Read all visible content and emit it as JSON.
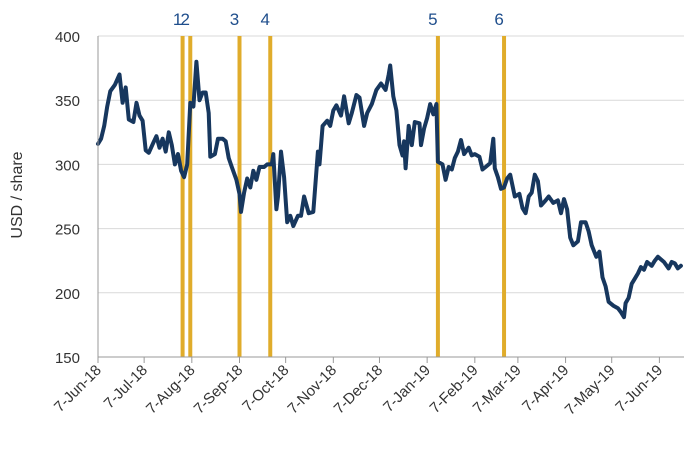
{
  "chart_data": {
    "type": "line",
    "title": "",
    "xlabel": "",
    "ylabel": "USD / share",
    "ylim": [
      150,
      400
    ],
    "y_ticks": [
      150,
      200,
      250,
      300,
      350,
      400
    ],
    "xlim": [
      "2018-06-07",
      "2019-06-23"
    ],
    "x_ticks": [
      {
        "date": "2018-06-07",
        "label": "7-Jun-18"
      },
      {
        "date": "2018-07-07",
        "label": "7-Jul-18"
      },
      {
        "date": "2018-08-07",
        "label": "7-Aug-18"
      },
      {
        "date": "2018-09-07",
        "label": "7-Sep-18"
      },
      {
        "date": "2018-10-07",
        "label": "7-Oct-18"
      },
      {
        "date": "2018-11-07",
        "label": "7-Nov-18"
      },
      {
        "date": "2018-12-07",
        "label": "7-Dec-18"
      },
      {
        "date": "2019-01-07",
        "label": "7-Jan-19"
      },
      {
        "date": "2019-02-07",
        "label": "7-Feb-19"
      },
      {
        "date": "2019-03-07",
        "label": "7-Mar-19"
      },
      {
        "date": "2019-04-07",
        "label": "7-Apr-19"
      },
      {
        "date": "2019-05-07",
        "label": "7-May-19"
      },
      {
        "date": "2019-06-07",
        "label": "7-Jun-19"
      }
    ],
    "grid": true,
    "legend": "none",
    "colors": {
      "series": "#17375e",
      "events": "#e0ac2b",
      "event_labels": "#1f4e8c",
      "grid": "#d9d9d9"
    },
    "series": [
      {
        "values": [
          [
            "2018-06-07",
            316
          ],
          [
            "2018-06-09",
            320
          ],
          [
            "2018-06-11",
            330
          ],
          [
            "2018-06-13",
            345
          ],
          [
            "2018-06-15",
            357
          ],
          [
            "2018-06-18",
            362
          ],
          [
            "2018-06-21",
            370
          ],
          [
            "2018-06-23",
            348
          ],
          [
            "2018-06-25",
            360
          ],
          [
            "2018-06-27",
            335
          ],
          [
            "2018-06-30",
            333
          ],
          [
            "2018-07-02",
            348
          ],
          [
            "2018-07-04",
            338
          ],
          [
            "2018-07-06",
            334
          ],
          [
            "2018-07-08",
            311
          ],
          [
            "2018-07-10",
            309
          ],
          [
            "2018-07-13",
            317
          ],
          [
            "2018-07-15",
            322
          ],
          [
            "2018-07-17",
            313
          ],
          [
            "2018-07-19",
            320
          ],
          [
            "2018-07-21",
            310
          ],
          [
            "2018-07-23",
            325
          ],
          [
            "2018-07-25",
            315
          ],
          [
            "2018-07-27",
            300
          ],
          [
            "2018-07-29",
            308
          ],
          [
            "2018-07-31",
            295
          ],
          [
            "2018-08-02",
            290
          ],
          [
            "2018-08-04",
            300
          ],
          [
            "2018-08-06",
            348
          ],
          [
            "2018-08-08",
            345
          ],
          [
            "2018-08-10",
            380
          ],
          [
            "2018-08-12",
            350
          ],
          [
            "2018-08-14",
            356
          ],
          [
            "2018-08-16",
            356
          ],
          [
            "2018-08-18",
            340
          ],
          [
            "2018-08-19",
            306
          ],
          [
            "2018-08-22",
            308
          ],
          [
            "2018-08-24",
            320
          ],
          [
            "2018-08-27",
            320
          ],
          [
            "2018-08-29",
            318
          ],
          [
            "2018-08-31",
            305
          ],
          [
            "2018-09-02",
            298
          ],
          [
            "2018-09-05",
            288
          ],
          [
            "2018-09-07",
            277
          ],
          [
            "2018-09-08",
            263
          ],
          [
            "2018-09-10",
            278
          ],
          [
            "2018-09-12",
            289
          ],
          [
            "2018-09-14",
            282
          ],
          [
            "2018-09-16",
            295
          ],
          [
            "2018-09-18",
            288
          ],
          [
            "2018-09-20",
            298
          ],
          [
            "2018-09-23",
            298
          ],
          [
            "2018-09-25",
            300
          ],
          [
            "2018-09-28",
            300
          ],
          [
            "2018-09-29",
            308
          ],
          [
            "2018-10-01",
            265
          ],
          [
            "2018-10-02",
            275
          ],
          [
            "2018-10-04",
            310
          ],
          [
            "2018-10-06",
            290
          ],
          [
            "2018-10-08",
            255
          ],
          [
            "2018-10-10",
            260
          ],
          [
            "2018-10-12",
            252
          ],
          [
            "2018-10-15",
            260
          ],
          [
            "2018-10-17",
            260
          ],
          [
            "2018-10-19",
            275
          ],
          [
            "2018-10-22",
            262
          ],
          [
            "2018-10-25",
            263
          ],
          [
            "2018-10-28",
            310
          ],
          [
            "2018-10-29",
            300
          ],
          [
            "2018-10-31",
            330
          ],
          [
            "2018-11-03",
            334
          ],
          [
            "2018-11-05",
            330
          ],
          [
            "2018-11-07",
            342
          ],
          [
            "2018-11-09",
            346
          ],
          [
            "2018-11-12",
            338
          ],
          [
            "2018-11-14",
            353
          ],
          [
            "2018-11-17",
            332
          ],
          [
            "2018-11-19",
            340
          ],
          [
            "2018-11-22",
            354
          ],
          [
            "2018-11-24",
            352
          ],
          [
            "2018-11-27",
            330
          ],
          [
            "2018-11-29",
            340
          ],
          [
            "2018-12-02",
            347
          ],
          [
            "2018-12-05",
            358
          ],
          [
            "2018-12-08",
            363
          ],
          [
            "2018-12-11",
            358
          ],
          [
            "2018-12-13",
            370
          ],
          [
            "2018-12-14",
            377
          ],
          [
            "2018-12-16",
            353
          ],
          [
            "2018-12-18",
            342
          ],
          [
            "2018-12-20",
            315
          ],
          [
            "2018-12-22",
            307
          ],
          [
            "2018-12-23",
            318
          ],
          [
            "2018-12-24",
            297
          ],
          [
            "2018-12-26",
            330
          ],
          [
            "2018-12-28",
            315
          ],
          [
            "2018-12-30",
            333
          ],
          [
            "2019-01-02",
            332
          ],
          [
            "2019-01-03",
            315
          ],
          [
            "2019-01-05",
            328
          ],
          [
            "2019-01-07",
            336
          ],
          [
            "2019-01-09",
            347
          ],
          [
            "2019-01-11",
            339
          ],
          [
            "2019-01-13",
            347
          ],
          [
            "2019-01-14",
            302
          ],
          [
            "2019-01-17",
            300
          ],
          [
            "2019-01-19",
            288
          ],
          [
            "2019-01-21",
            298
          ],
          [
            "2019-01-23",
            296
          ],
          [
            "2019-01-25",
            305
          ],
          [
            "2019-01-27",
            310
          ],
          [
            "2019-01-29",
            319
          ],
          [
            "2019-01-31",
            308
          ],
          [
            "2019-02-03",
            313
          ],
          [
            "2019-02-05",
            307
          ],
          [
            "2019-02-07",
            308
          ],
          [
            "2019-02-10",
            306
          ],
          [
            "2019-02-12",
            296
          ],
          [
            "2019-02-14",
            298
          ],
          [
            "2019-02-17",
            301
          ],
          [
            "2019-02-19",
            320
          ],
          [
            "2019-02-20",
            297
          ],
          [
            "2019-02-22",
            290
          ],
          [
            "2019-02-24",
            281
          ],
          [
            "2019-02-26",
            282
          ],
          [
            "2019-02-28",
            289
          ],
          [
            "2019-03-02",
            292
          ],
          [
            "2019-03-05",
            275
          ],
          [
            "2019-03-08",
            277
          ],
          [
            "2019-03-10",
            266
          ],
          [
            "2019-03-12",
            262
          ],
          [
            "2019-03-14",
            275
          ],
          [
            "2019-03-16",
            278
          ],
          [
            "2019-03-18",
            292
          ],
          [
            "2019-03-20",
            287
          ],
          [
            "2019-03-22",
            268
          ],
          [
            "2019-03-25",
            272
          ],
          [
            "2019-03-27",
            275
          ],
          [
            "2019-03-30",
            270
          ],
          [
            "2019-04-02",
            272
          ],
          [
            "2019-04-04",
            262
          ],
          [
            "2019-04-06",
            273
          ],
          [
            "2019-04-08",
            265
          ],
          [
            "2019-04-10",
            243
          ],
          [
            "2019-04-12",
            237
          ],
          [
            "2019-04-15",
            240
          ],
          [
            "2019-04-17",
            255
          ],
          [
            "2019-04-20",
            255
          ],
          [
            "2019-04-22",
            248
          ],
          [
            "2019-04-24",
            237
          ],
          [
            "2019-04-27",
            228
          ],
          [
            "2019-04-29",
            232
          ],
          [
            "2019-05-01",
            212
          ],
          [
            "2019-05-03",
            205
          ],
          [
            "2019-05-05",
            193
          ],
          [
            "2019-05-08",
            190
          ],
          [
            "2019-05-11",
            188
          ],
          [
            "2019-05-13",
            185
          ],
          [
            "2019-05-15",
            181
          ],
          [
            "2019-05-16",
            192
          ],
          [
            "2019-05-18",
            196
          ],
          [
            "2019-05-20",
            207
          ],
          [
            "2019-05-22",
            211
          ],
          [
            "2019-05-24",
            215
          ],
          [
            "2019-05-26",
            220
          ],
          [
            "2019-05-28",
            218
          ],
          [
            "2019-05-30",
            224
          ],
          [
            "2019-06-02",
            221
          ],
          [
            "2019-06-04",
            225
          ],
          [
            "2019-06-06",
            228
          ],
          [
            "2019-06-08",
            226
          ],
          [
            "2019-06-10",
            224
          ],
          [
            "2019-06-13",
            219
          ],
          [
            "2019-06-15",
            224
          ],
          [
            "2019-06-17",
            223
          ],
          [
            "2019-06-19",
            219
          ],
          [
            "2019-06-21",
            221
          ]
        ]
      }
    ],
    "events": [
      {
        "label": "1",
        "date": "2018-08-01"
      },
      {
        "label": "2",
        "date": "2018-08-06"
      },
      {
        "label": "3",
        "date": "2018-09-07"
      },
      {
        "label": "4",
        "date": "2018-09-27"
      },
      {
        "label": "5",
        "date": "2019-01-14"
      },
      {
        "label": "6",
        "date": "2019-02-26"
      }
    ]
  }
}
